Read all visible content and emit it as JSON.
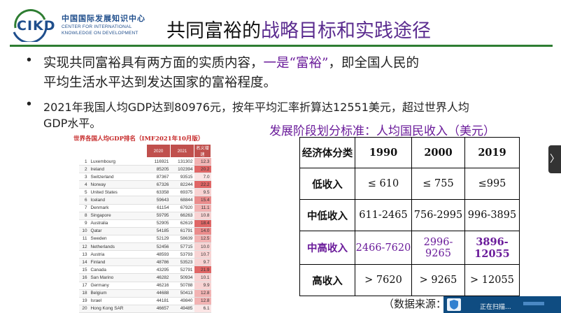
{
  "header": {
    "logo_text": "CIKD",
    "org_cn": "中国国际发展知识中心",
    "org_en_line1": "CENTER FOR INTERNATIONAL",
    "org_en_line2": "KNOWLEDGE ON DEVELOPMENT",
    "title_part1": "共同富裕的",
    "title_part2": "战略目标和实践途径",
    "accent_color": "#2e7d32",
    "title_accent_color": "#5b2c8f"
  },
  "bullets": {
    "b1_line1_pre": "实现共同富裕具有两方面的实质内容，",
    "b1_line1_hl": "一是“富裕”",
    "b1_line1_post": "，即全国人民的",
    "b1_line2": "平均生活水平达到发达国家的富裕程度。",
    "b2_line1": "2021年我国人均GDP达到80976元，按年平均汇率折算达12551美元，超过世界人均",
    "b2_line2": "GDP水平。"
  },
  "rank_table": {
    "caption": "世界各国人均GDP排名（IMF2021年10月版）",
    "headers": [
      "",
      "",
      "2020",
      "2021",
      "名义增速"
    ],
    "rows": [
      {
        "rank": "1",
        "country": "Luxembourg",
        "y2020": "116921",
        "y2021": "131302",
        "growth": "12.3"
      },
      {
        "rank": "2",
        "country": "Ireland",
        "y2020": "85205",
        "y2021": "102394",
        "growth": "20.2"
      },
      {
        "rank": "3",
        "country": "Switzerland",
        "y2020": "87367",
        "y2021": "93515",
        "growth": "7.0"
      },
      {
        "rank": "4",
        "country": "Norway",
        "y2020": "67326",
        "y2021": "82244",
        "growth": "22.2"
      },
      {
        "rank": "5",
        "country": "United States",
        "y2020": "63358",
        "y2021": "69375",
        "growth": "9.5"
      },
      {
        "rank": "6",
        "country": "Iceland",
        "y2020": "59643",
        "y2021": "68844",
        "growth": "15.4"
      },
      {
        "rank": "7",
        "country": "Denmark",
        "y2020": "61154",
        "y2021": "67920",
        "growth": "11.1"
      },
      {
        "rank": "8",
        "country": "Singapore",
        "y2020": "59795",
        "y2021": "66263",
        "growth": "10.8"
      },
      {
        "rank": "9",
        "country": "Australia",
        "y2020": "52905",
        "y2021": "62619",
        "growth": "18.4"
      },
      {
        "rank": "10",
        "country": "Qatar",
        "y2020": "54185",
        "y2021": "61791",
        "growth": "14.0"
      },
      {
        "rank": "11",
        "country": "Sweden",
        "y2020": "52129",
        "y2021": "58639",
        "growth": "12.5"
      },
      {
        "rank": "12",
        "country": "Netherlands",
        "y2020": "52456",
        "y2021": "57715",
        "growth": "10.0"
      },
      {
        "rank": "13",
        "country": "Austria",
        "y2020": "48593",
        "y2021": "53793",
        "growth": "10.7"
      },
      {
        "rank": "14",
        "country": "Finland",
        "y2020": "48786",
        "y2021": "53523",
        "growth": "9.7"
      },
      {
        "rank": "15",
        "country": "Canada",
        "y2020": "43295",
        "y2021": "52791",
        "growth": "21.9"
      },
      {
        "rank": "16",
        "country": "San Marino",
        "y2020": "46282",
        "y2021": "50934",
        "growth": "10.1"
      },
      {
        "rank": "17",
        "country": "Germany",
        "y2020": "46216",
        "y2021": "50788",
        "growth": "9.9"
      },
      {
        "rank": "18",
        "country": "Belgium",
        "y2020": "44688",
        "y2021": "50413",
        "growth": "12.8"
      },
      {
        "rank": "19",
        "country": "Israel",
        "y2020": "44181",
        "y2021": "49840",
        "growth": "12.8"
      },
      {
        "rank": "20",
        "country": "Hong Kong SAR",
        "y2020": "46657",
        "y2021": "49485",
        "growth": "6.1"
      }
    ]
  },
  "class_table": {
    "caption": "发展阶段划分标准：人均国民收入（美元）",
    "header_label": "经济体分类",
    "years": [
      "1990",
      "2000",
      "2019"
    ],
    "rows": [
      {
        "label": "低收入",
        "v1990": "≤ 610",
        "v2000": "≤ 755",
        "v2019": "≤995"
      },
      {
        "label": "中低收入",
        "v1990": "611-2465",
        "v2000": "756-2995",
        "v2019": "996-3895"
      },
      {
        "label": "中高收入",
        "v1990": "2466-7620",
        "v2000": "2996-9265",
        "v2019": "3896-12055"
      },
      {
        "label": "高收入",
        "v1990": "> 7620",
        "v2000": "> 9265",
        "v2019": "> 12055"
      }
    ]
  },
  "source_label": "（数据来源：",
  "scan_popup": {
    "text": "正在扫描..."
  },
  "nav_next_glyph": "〉"
}
